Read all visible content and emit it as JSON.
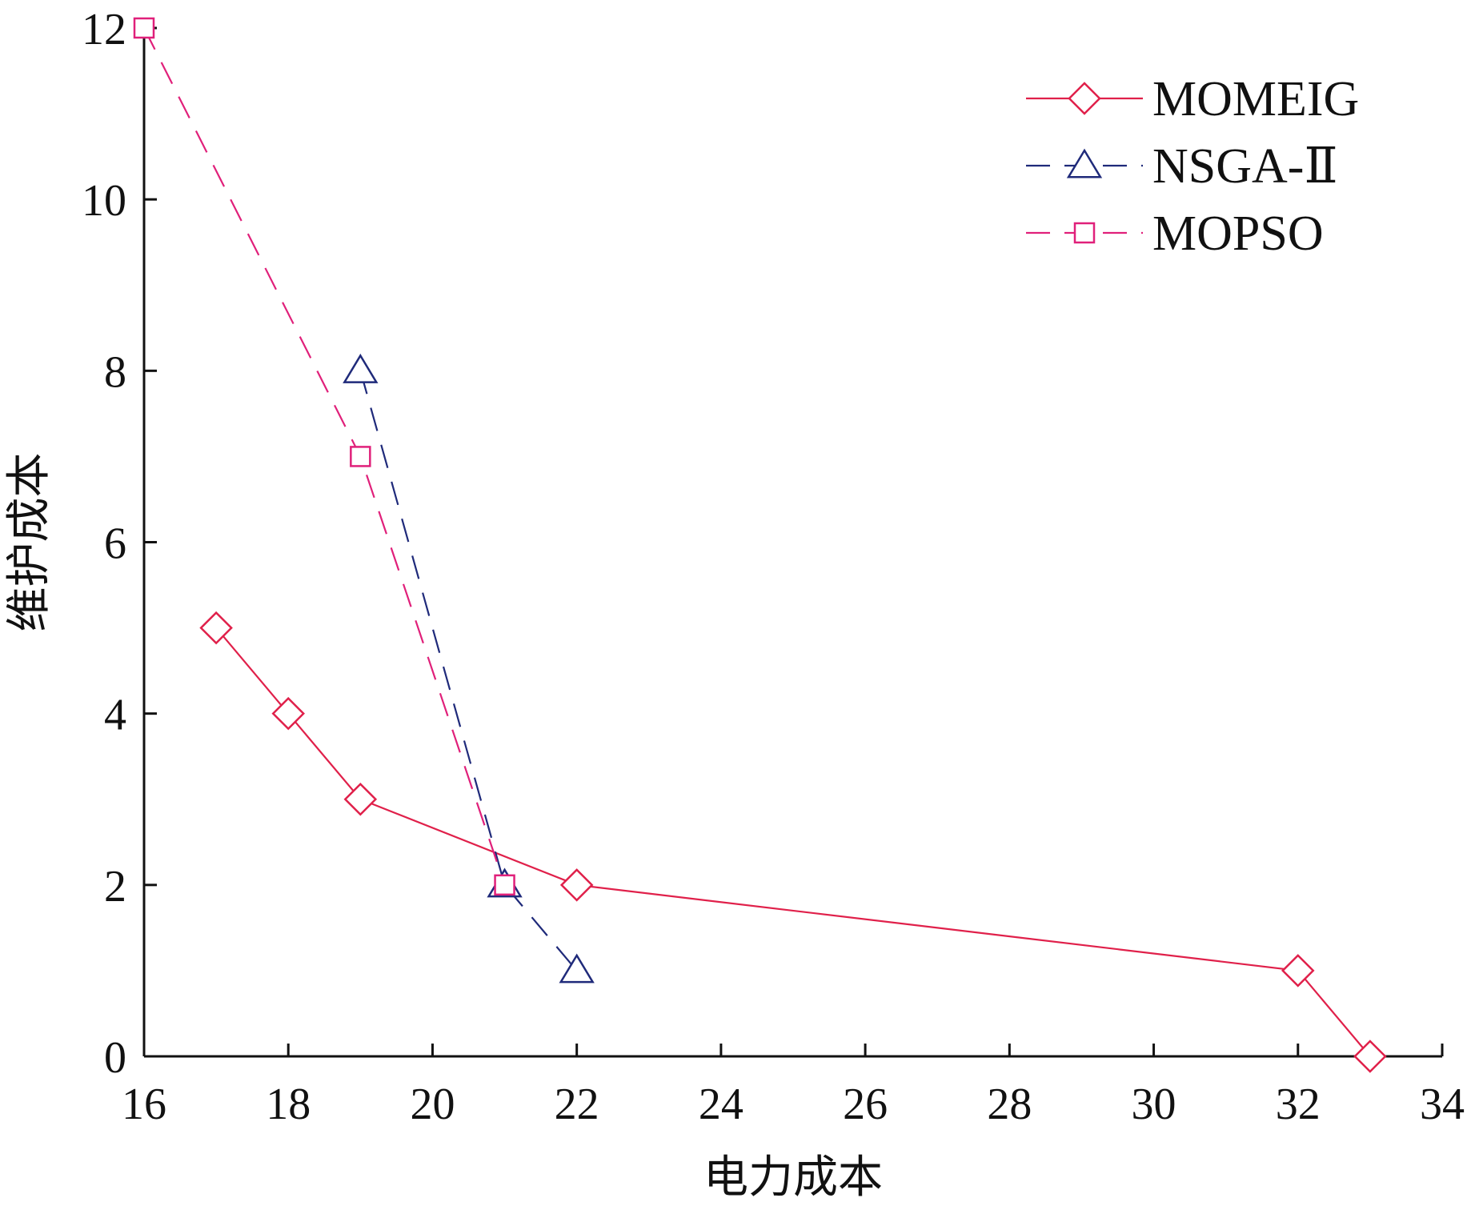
{
  "chart_data": {
    "type": "line",
    "xlabel": "电力成本",
    "ylabel": "维护成本",
    "xlim": [
      16,
      34
    ],
    "ylim": [
      0,
      12
    ],
    "xticks": [
      16,
      18,
      20,
      22,
      24,
      26,
      28,
      30,
      32,
      34
    ],
    "yticks": [
      0,
      2,
      4,
      6,
      8,
      10,
      12
    ],
    "grid": false,
    "legend_position": "top-right",
    "series": [
      {
        "name": "MOMEIG",
        "color": "#e0204a",
        "line_style": "solid",
        "marker": "diamond",
        "x": [
          17,
          18,
          19,
          22,
          32,
          33
        ],
        "y": [
          5,
          4,
          3,
          2,
          1,
          0
        ]
      },
      {
        "name": "NSGA-Ⅱ",
        "color": "#1f2a7a",
        "line_style": "dashed",
        "marker": "triangle",
        "x": [
          19,
          21,
          22
        ],
        "y": [
          8,
          2,
          1
        ]
      },
      {
        "name": "MOPSO",
        "color": "#e0207a",
        "line_style": "dashed",
        "marker": "square",
        "x": [
          16,
          19,
          21
        ],
        "y": [
          12,
          7,
          2
        ]
      }
    ]
  }
}
